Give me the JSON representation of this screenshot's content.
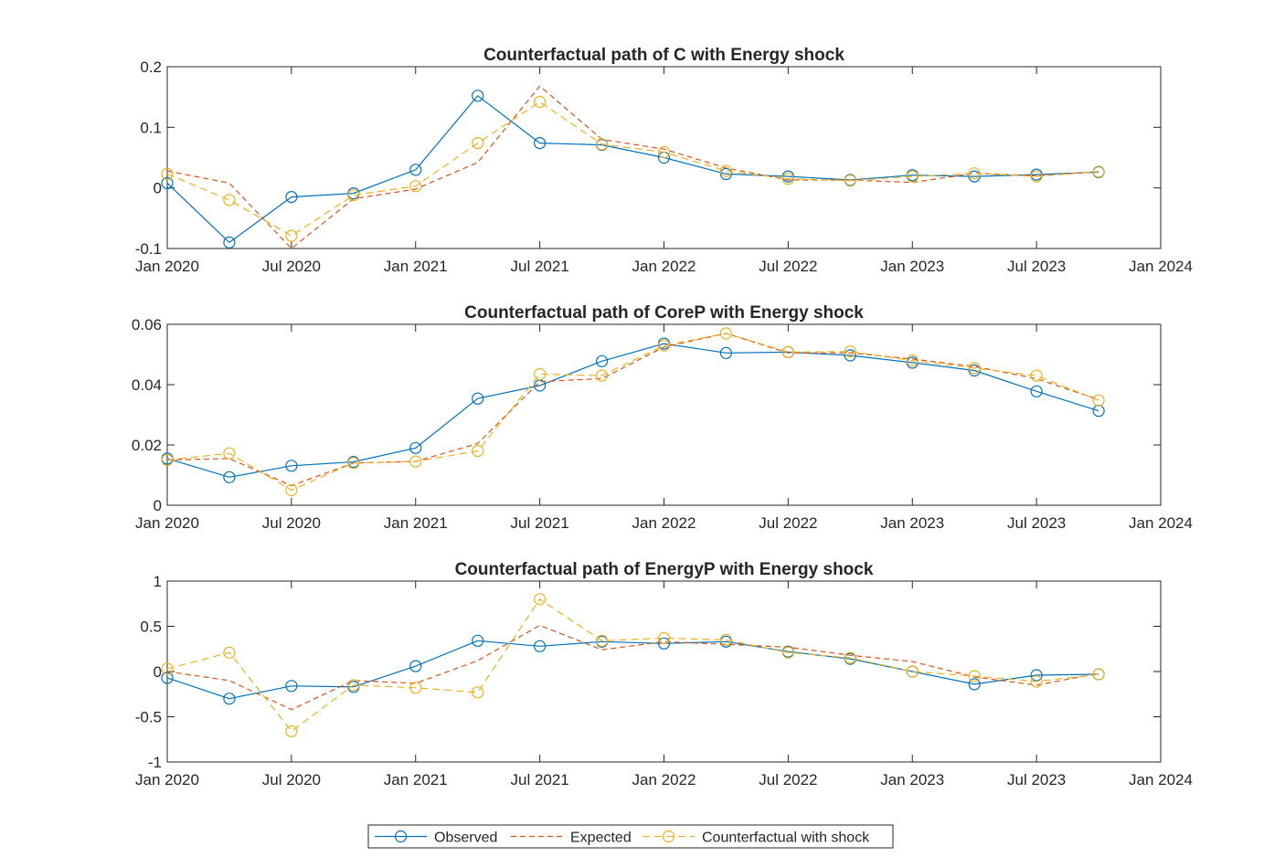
{
  "chart_data": [
    {
      "type": "line",
      "title": "Counterfactual path of C with Energy shock",
      "xlabel": "",
      "ylabel": "",
      "x": [
        "2020-01",
        "2020-04",
        "2020-07",
        "2020-10",
        "2021-01",
        "2021-04",
        "2021-07",
        "2021-10",
        "2022-01",
        "2022-04",
        "2022-07",
        "2022-10",
        "2023-01",
        "2023-04",
        "2023-07",
        "2023-10"
      ],
      "xlim": [
        "2020-01",
        "2024-01"
      ],
      "xticks": [
        "Jan 2020",
        "Jul 2020",
        "Jan 2021",
        "Jul 2021",
        "Jan 2022",
        "Jul 2022",
        "Jan 2023",
        "Jul 2023",
        "Jan 2024"
      ],
      "ylim": [
        -0.1,
        0.2
      ],
      "yticks": [
        "-0.1",
        "0",
        "0.1",
        "0.2"
      ],
      "grid": false,
      "series": [
        {
          "name": "Observed",
          "values": [
            0.008,
            -0.09,
            -0.015,
            -0.009,
            0.03,
            0.152,
            0.074,
            0.071,
            0.05,
            0.023,
            0.019,
            0.013,
            0.021,
            0.019,
            0.022,
            0.026
          ]
        },
        {
          "name": "Expected",
          "values": [
            0.028,
            0.008,
            -0.1,
            -0.018,
            -0.002,
            0.042,
            0.168,
            0.08,
            0.064,
            0.033,
            0.013,
            0.013,
            0.009,
            0.024,
            0.02,
            0.027
          ]
        },
        {
          "name": "Counterfactual with shock",
          "values": [
            0.023,
            -0.02,
            -0.079,
            -0.012,
            0.003,
            0.074,
            0.142,
            0.072,
            0.059,
            0.028,
            0.015,
            0.012,
            0.019,
            0.024,
            0.019,
            0.027
          ]
        }
      ]
    },
    {
      "type": "line",
      "title": "Counterfactual path of CoreP with Energy shock",
      "xlabel": "",
      "ylabel": "",
      "x": [
        "2020-01",
        "2020-04",
        "2020-07",
        "2020-10",
        "2021-01",
        "2021-04",
        "2021-07",
        "2021-10",
        "2022-01",
        "2022-04",
        "2022-07",
        "2022-10",
        "2023-01",
        "2023-04",
        "2023-07",
        "2023-10"
      ],
      "xlim": [
        "2020-01",
        "2024-01"
      ],
      "xticks": [
        "Jan 2020",
        "Jul 2020",
        "Jan 2021",
        "Jul 2021",
        "Jan 2022",
        "Jul 2022",
        "Jan 2023",
        "Jul 2023",
        "Jan 2024"
      ],
      "ylim": [
        0,
        0.06
      ],
      "yticks": [
        "0",
        "0.02",
        "0.04",
        "0.06"
      ],
      "grid": false,
      "series": [
        {
          "name": "Observed",
          "values": [
            0.0155,
            0.0093,
            0.0131,
            0.0144,
            0.019,
            0.0354,
            0.0397,
            0.0478,
            0.0536,
            0.0505,
            0.0508,
            0.0497,
            0.0473,
            0.0447,
            0.0378,
            0.0313
          ]
        },
        {
          "name": "Expected",
          "values": [
            0.015,
            0.0155,
            0.0065,
            0.014,
            0.0145,
            0.0205,
            0.041,
            0.042,
            0.0525,
            0.057,
            0.0505,
            0.0505,
            0.0485,
            0.046,
            0.042,
            0.035
          ]
        },
        {
          "name": "Counterfactual with shock",
          "values": [
            0.015,
            0.0172,
            0.005,
            0.014,
            0.0145,
            0.018,
            0.0435,
            0.043,
            0.053,
            0.057,
            0.0508,
            0.051,
            0.048,
            0.0455,
            0.043,
            0.0348
          ]
        }
      ]
    },
    {
      "type": "line",
      "title": "Counterfactual path of EnergyP with Energy shock",
      "xlabel": "",
      "ylabel": "",
      "x": [
        "2020-01",
        "2020-04",
        "2020-07",
        "2020-10",
        "2021-01",
        "2021-04",
        "2021-07",
        "2021-10",
        "2022-01",
        "2022-04",
        "2022-07",
        "2022-10",
        "2023-01",
        "2023-04",
        "2023-07",
        "2023-10"
      ],
      "xlim": [
        "2020-01",
        "2024-01"
      ],
      "xticks": [
        "Jan 2020",
        "Jul 2020",
        "Jan 2021",
        "Jul 2021",
        "Jan 2022",
        "Jul 2022",
        "Jan 2023",
        "Jul 2023",
        "Jan 2024"
      ],
      "ylim": [
        -1,
        1
      ],
      "yticks": [
        "-1",
        "-0.5",
        "0",
        "0.5",
        "1"
      ],
      "grid": false,
      "series": [
        {
          "name": "Observed",
          "values": [
            -0.07,
            -0.3,
            -0.16,
            -0.17,
            0.06,
            0.34,
            0.28,
            0.33,
            0.31,
            0.33,
            0.22,
            0.14,
            0.0,
            -0.14,
            -0.04,
            -0.03
          ]
        },
        {
          "name": "Expected",
          "values": [
            0.0,
            -0.1,
            -0.42,
            -0.1,
            -0.13,
            0.12,
            0.51,
            0.24,
            0.33,
            0.3,
            0.27,
            0.18,
            0.11,
            -0.06,
            -0.15,
            -0.02
          ]
        },
        {
          "name": "Counterfactual with shock",
          "values": [
            0.03,
            0.21,
            -0.66,
            -0.15,
            -0.18,
            -0.23,
            0.8,
            0.34,
            0.37,
            0.35,
            0.21,
            0.15,
            0.0,
            -0.05,
            -0.11,
            -0.03
          ]
        }
      ]
    }
  ],
  "legend": {
    "placement": "bottom-center",
    "entries": [
      "Observed",
      "Expected",
      "Counterfactual with shock"
    ]
  },
  "colors": {
    "Observed": "#0072BD",
    "Expected": "#D95319",
    "Counterfactual with shock": "#EDB120",
    "axes": "#262626"
  }
}
